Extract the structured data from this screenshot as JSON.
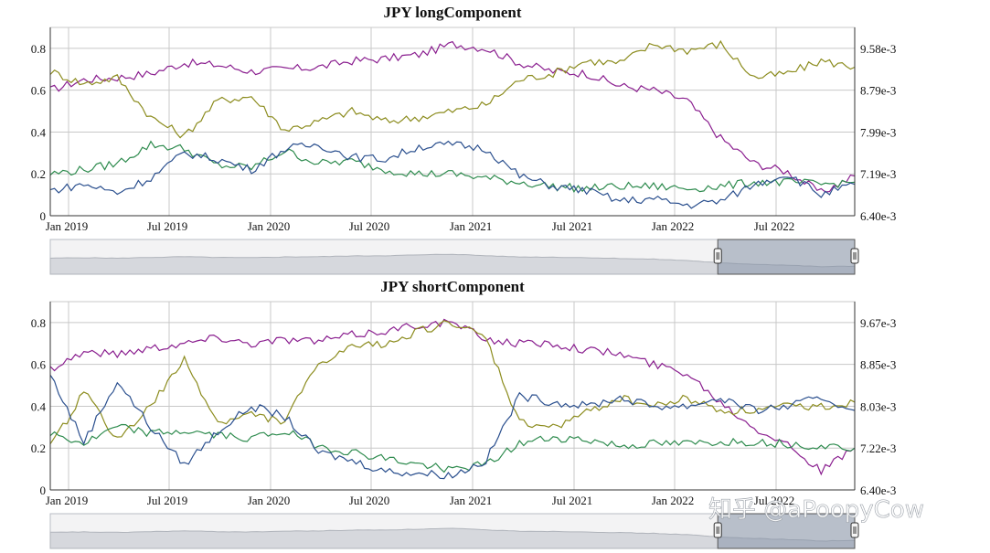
{
  "watermark": "知乎 @aPoopyCow",
  "colors": {
    "purple": "#8a1e8f",
    "olive": "#8c8c1e",
    "green": "#2e8b4e",
    "blue": "#2a4f8e",
    "grid": "#c8c8c8",
    "navigatorFill": "#d6d8dd",
    "navigatorSelect": "#8793a8"
  },
  "chart_data": [
    {
      "type": "line",
      "title": "JPY longComponent",
      "x_labels": [
        "Jan 2019",
        "Jul 2019",
        "Jan 2020",
        "Jul 2020",
        "Jan 2021",
        "Jul 2021",
        "Jan 2022",
        "Jul 2022"
      ],
      "y_left": {
        "ticks": [
          "0",
          "0.2",
          "0.4",
          "0.6",
          "0.8"
        ],
        "min": 0,
        "max": 0.9
      },
      "y_right": {
        "ticks": [
          "6.40e-3",
          "7.19e-3",
          "7.99e-3",
          "8.79e-3",
          "9.58e-3"
        ]
      },
      "x": [
        "2019-01",
        "2019-03",
        "2019-05",
        "2019-07",
        "2019-09",
        "2019-11",
        "2020-01",
        "2020-03",
        "2020-05",
        "2020-07",
        "2020-09",
        "2020-11",
        "2021-01",
        "2021-03",
        "2021-05",
        "2021-07",
        "2021-09",
        "2021-11",
        "2022-01",
        "2022-03",
        "2022-05",
        "2022-07",
        "2022-09",
        "2022-11",
        "2022-12"
      ],
      "series": [
        {
          "name": "purple",
          "color": "#8a1e8f",
          "values": [
            0.6,
            0.65,
            0.66,
            0.68,
            0.73,
            0.72,
            0.69,
            0.7,
            0.71,
            0.74,
            0.75,
            0.77,
            0.82,
            0.8,
            0.73,
            0.69,
            0.68,
            0.62,
            0.6,
            0.55,
            0.37,
            0.25,
            0.21,
            0.11,
            0.19
          ]
        },
        {
          "name": "olive",
          "color": "#8c8c1e",
          "values": [
            0.69,
            0.63,
            0.66,
            0.47,
            0.38,
            0.55,
            0.57,
            0.41,
            0.45,
            0.5,
            0.45,
            0.47,
            0.5,
            0.53,
            0.65,
            0.68,
            0.74,
            0.73,
            0.82,
            0.79,
            0.82,
            0.66,
            0.68,
            0.74,
            0.71
          ]
        },
        {
          "name": "green",
          "color": "#2e8b4e",
          "values": [
            0.2,
            0.22,
            0.25,
            0.34,
            0.32,
            0.24,
            0.23,
            0.31,
            0.25,
            0.26,
            0.22,
            0.2,
            0.2,
            0.18,
            0.16,
            0.14,
            0.13,
            0.14,
            0.14,
            0.13,
            0.14,
            0.16,
            0.16,
            0.15,
            0.16
          ]
        },
        {
          "name": "blue",
          "color": "#2a4f8e",
          "values": [
            0.12,
            0.15,
            0.11,
            0.18,
            0.3,
            0.27,
            0.22,
            0.32,
            0.34,
            0.28,
            0.27,
            0.33,
            0.34,
            0.32,
            0.19,
            0.14,
            0.12,
            0.07,
            0.08,
            0.05,
            0.07,
            0.15,
            0.2,
            0.1,
            0.15
          ]
        }
      ]
    },
    {
      "type": "line",
      "title": "JPY shortComponent",
      "x_labels": [
        "Jan 2019",
        "Jul 2019",
        "Jan 2020",
        "Jul 2020",
        "Jan 2021",
        "Jul 2021",
        "Jan 2022",
        "Jul 2022"
      ],
      "y_left": {
        "ticks": [
          "0",
          "0.2",
          "0.4",
          "0.6",
          "0.8"
        ],
        "min": 0,
        "max": 0.9
      },
      "y_right": {
        "ticks": [
          "6.40e-3",
          "7.22e-3",
          "8.03e-3",
          "8.85e-3",
          "9.67e-3"
        ]
      },
      "x": [
        "2019-01",
        "2019-03",
        "2019-05",
        "2019-07",
        "2019-09",
        "2019-11",
        "2020-01",
        "2020-03",
        "2020-05",
        "2020-07",
        "2020-09",
        "2020-11",
        "2021-01",
        "2021-03",
        "2021-05",
        "2021-07",
        "2021-09",
        "2021-11",
        "2022-01",
        "2022-03",
        "2022-05",
        "2022-07",
        "2022-09",
        "2022-11",
        "2022-12"
      ],
      "series": [
        {
          "name": "purple",
          "color": "#8a1e8f",
          "values": [
            0.58,
            0.66,
            0.65,
            0.68,
            0.7,
            0.73,
            0.7,
            0.72,
            0.71,
            0.74,
            0.76,
            0.79,
            0.8,
            0.72,
            0.7,
            0.7,
            0.67,
            0.65,
            0.6,
            0.56,
            0.42,
            0.3,
            0.22,
            0.09,
            0.2
          ]
        },
        {
          "name": "olive",
          "color": "#8c8c1e",
          "values": [
            0.2,
            0.47,
            0.24,
            0.4,
            0.62,
            0.32,
            0.36,
            0.33,
            0.6,
            0.68,
            0.7,
            0.76,
            0.8,
            0.72,
            0.32,
            0.3,
            0.37,
            0.44,
            0.4,
            0.44,
            0.38,
            0.38,
            0.4,
            0.4,
            0.42
          ]
        },
        {
          "name": "green",
          "color": "#2e8b4e",
          "values": [
            0.27,
            0.22,
            0.3,
            0.27,
            0.28,
            0.26,
            0.25,
            0.28,
            0.21,
            0.18,
            0.15,
            0.12,
            0.1,
            0.12,
            0.22,
            0.25,
            0.24,
            0.21,
            0.22,
            0.22,
            0.23,
            0.23,
            0.22,
            0.21,
            0.2
          ]
        },
        {
          "name": "blue",
          "color": "#2a4f8e",
          "values": [
            0.55,
            0.23,
            0.52,
            0.3,
            0.12,
            0.28,
            0.4,
            0.35,
            0.18,
            0.14,
            0.09,
            0.08,
            0.07,
            0.14,
            0.45,
            0.42,
            0.4,
            0.44,
            0.4,
            0.4,
            0.44,
            0.38,
            0.4,
            0.44,
            0.38
          ]
        }
      ]
    }
  ],
  "navigator": {
    "series": [
      0.64,
      0.66,
      0.64,
      0.67,
      0.7,
      0.67,
      0.66,
      0.69,
      0.7,
      0.73,
      0.74,
      0.77,
      0.8,
      0.74,
      0.69,
      0.68,
      0.66,
      0.63,
      0.6,
      0.55,
      0.45,
      0.4,
      0.36,
      0.3,
      0.32
    ],
    "selected_from": "2022-04",
    "selected_to": "2022-12"
  }
}
